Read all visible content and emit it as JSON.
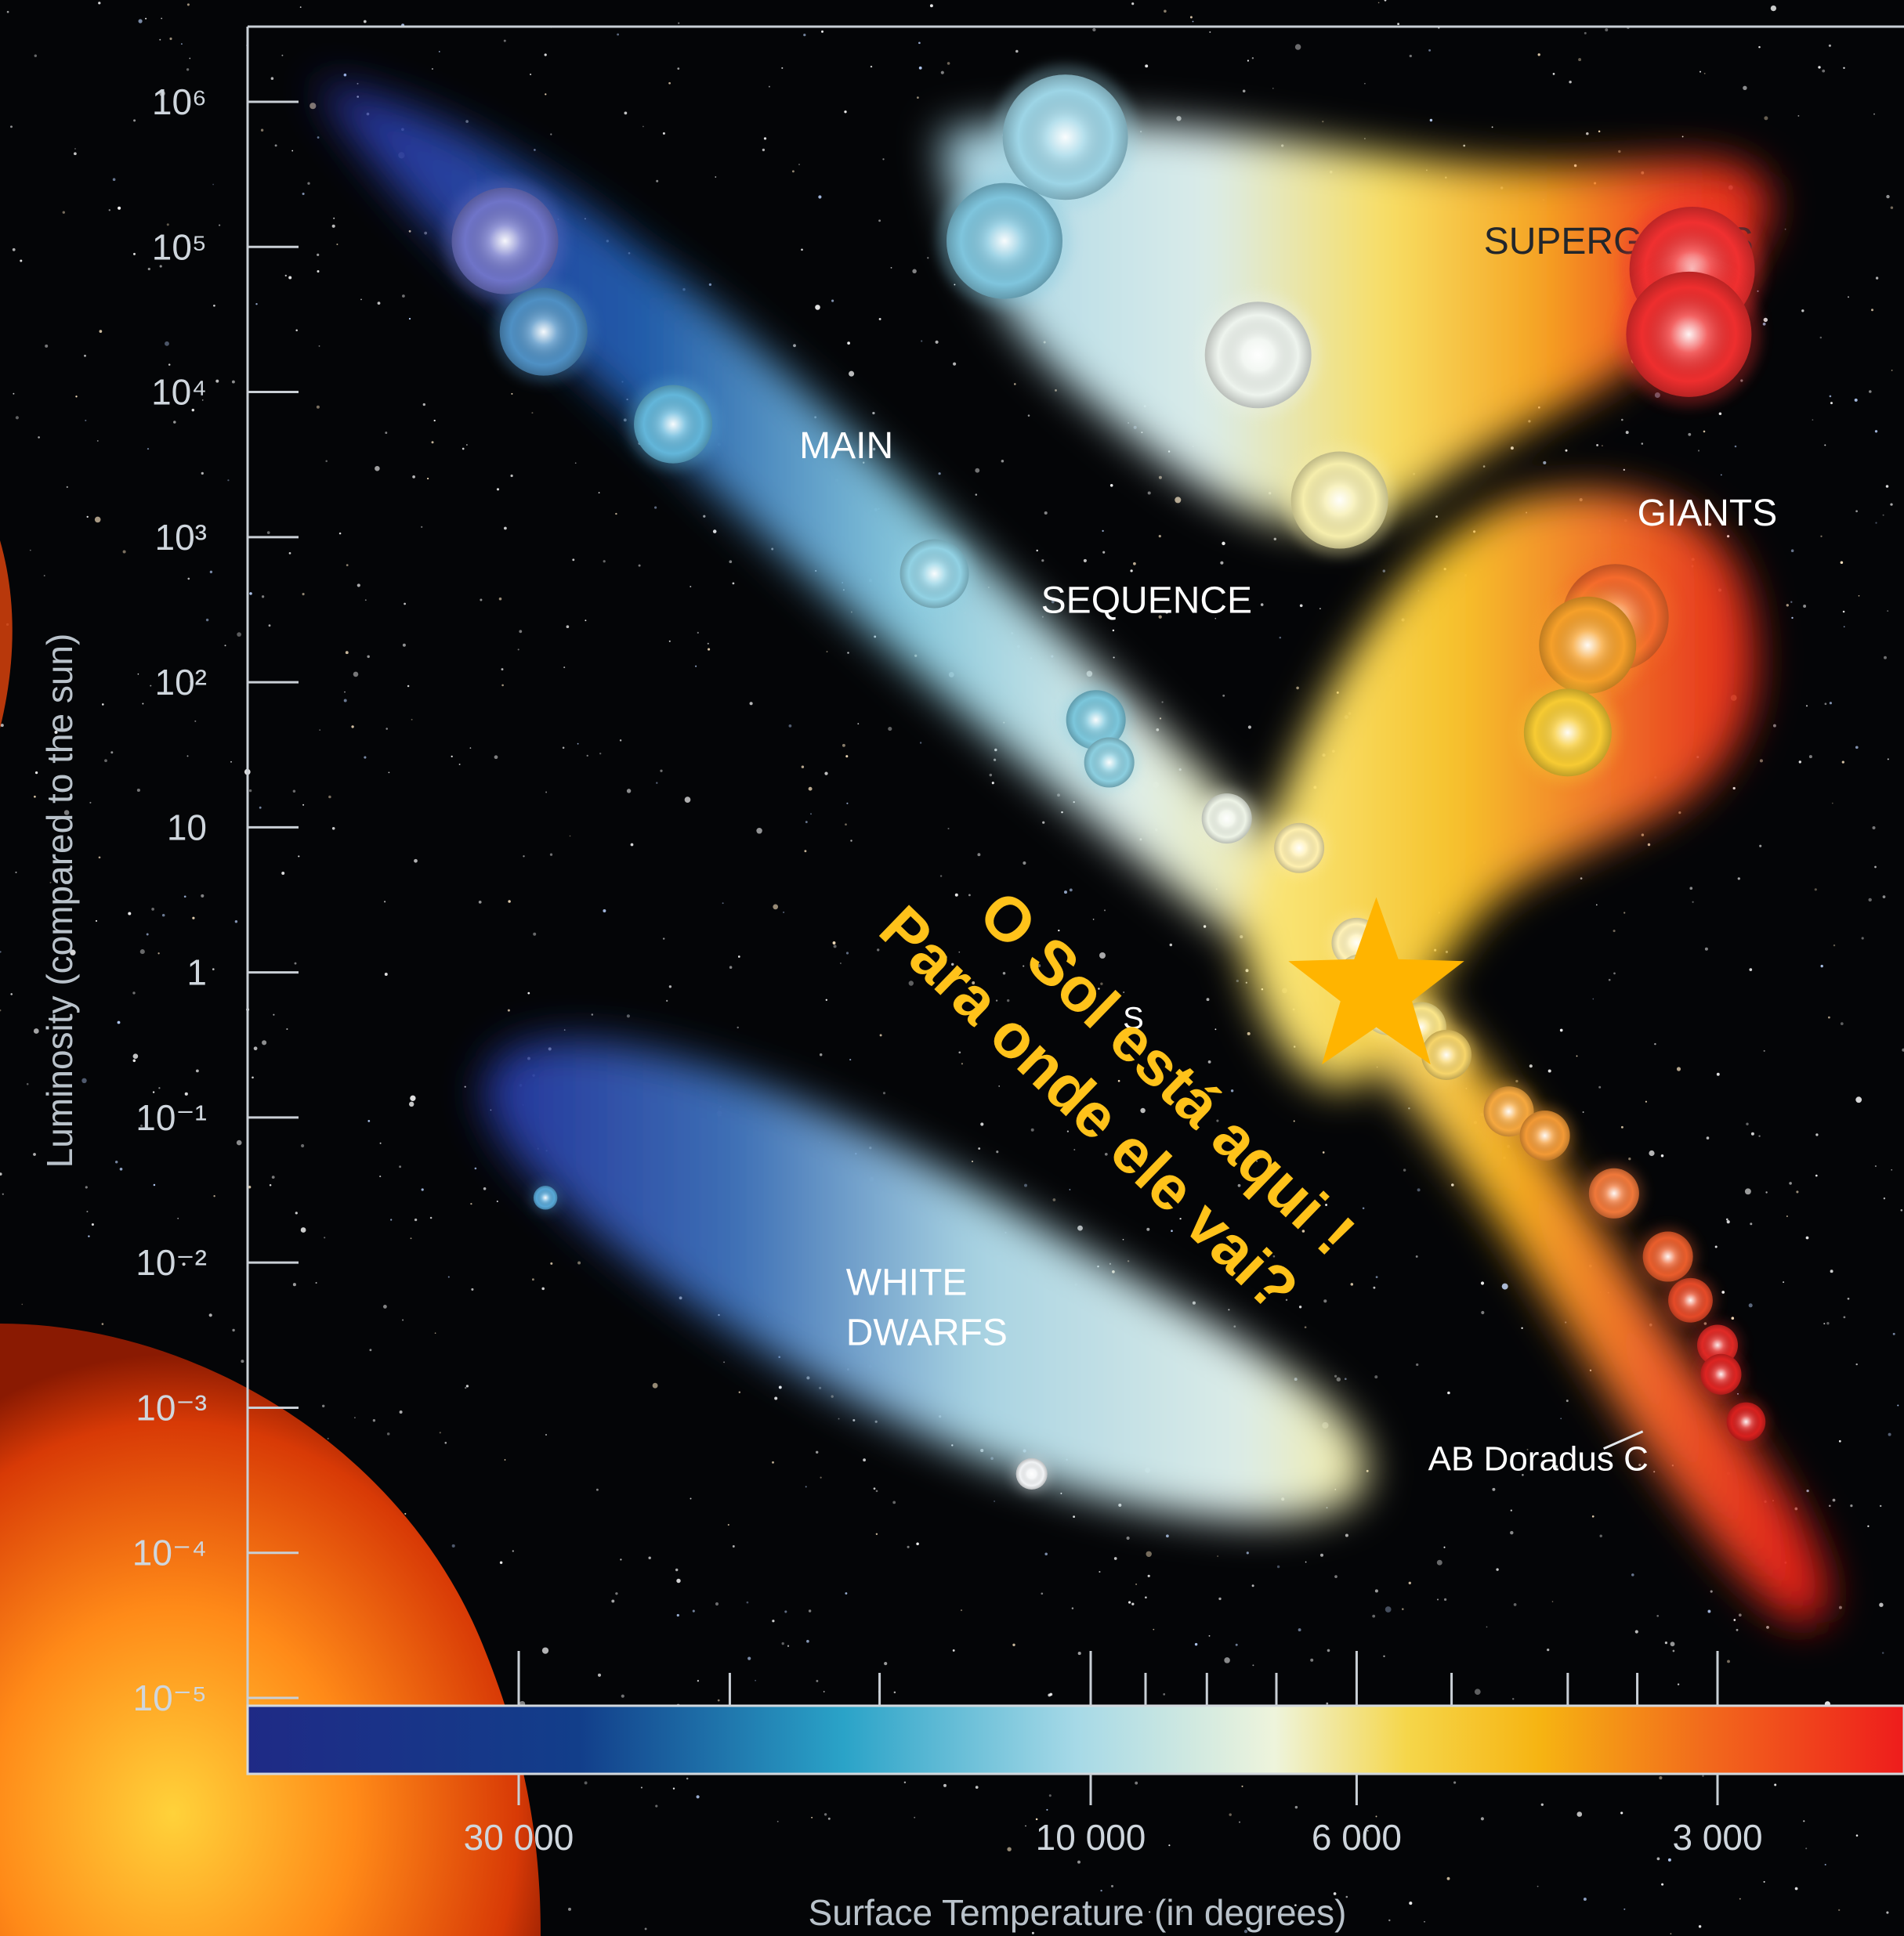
{
  "chart_data": {
    "type": "scatter",
    "title": "",
    "xlabel": "Surface Temperature (in degrees)",
    "ylabel": "Luminosity (compared to the sun)",
    "x_scale": "log-reversed",
    "x_range": [
      45000,
      2400
    ],
    "y_scale": "log",
    "y_range": [
      1e-05,
      1000000
    ],
    "x_tick_labels": [
      {
        "value": 30000,
        "label": "30 000"
      },
      {
        "value": 10000,
        "label": "10 000"
      },
      {
        "value": 6000,
        "label": "6 000"
      },
      {
        "value": 3000,
        "label": "3 000"
      }
    ],
    "x_minor_ticks": [
      20000,
      15000,
      9000,
      8000,
      7000,
      5000,
      4000,
      3500
    ],
    "y_tick_labels": [
      {
        "value": 1000000,
        "label": "10⁶"
      },
      {
        "value": 100000,
        "label": "10⁵"
      },
      {
        "value": 10000,
        "label": "10⁴"
      },
      {
        "value": 1000,
        "label": "10³"
      },
      {
        "value": 100,
        "label": "10²"
      },
      {
        "value": 10,
        "label": "10"
      },
      {
        "value": 1,
        "label": "1"
      },
      {
        "value": 0.1,
        "label": "10⁻¹"
      },
      {
        "value": 0.01,
        "label": "10⁻²"
      },
      {
        "value": 0.001,
        "label": "10⁻³"
      },
      {
        "value": 0.0001,
        "label": "10⁻⁴"
      },
      {
        "value": 1e-05,
        "label": "10⁻⁵"
      }
    ],
    "regions": [
      {
        "label_lines": [
          "SUPERGIANTS"
        ],
        "x": 4700,
        "y": 90000,
        "dark": true
      },
      {
        "label_lines": [
          "MAIN"
        ],
        "x": 17500,
        "y": 3500,
        "dark": false
      },
      {
        "label_lines": [
          "SEQUENCE"
        ],
        "x": 11000,
        "y": 300,
        "dark": false
      },
      {
        "label_lines": [
          "GIANTS"
        ],
        "x": 3500,
        "y": 1200,
        "dark": false
      },
      {
        "label_lines": [
          "WHITE",
          "DWARFS"
        ],
        "x": 16000,
        "y": 0.006,
        "dark": false
      }
    ],
    "stars": [
      {
        "x": 30800,
        "y": 110000,
        "size": 5,
        "color": "#6f74c8"
      },
      {
        "x": 28600,
        "y": 26000,
        "size": 4,
        "color": "#4f90c4"
      },
      {
        "x": 22300,
        "y": 6000,
        "size": 3.5,
        "color": "#63b6da"
      },
      {
        "x": 13500,
        "y": 560,
        "size": 3,
        "color": "#92d2e4"
      },
      {
        "x": 9900,
        "y": 55,
        "size": 2.5,
        "color": "#7cc7dc"
      },
      {
        "x": 9650,
        "y": 28,
        "size": 2,
        "color": "#8ccfe0"
      },
      {
        "x": 7700,
        "y": 11.5,
        "size": 2,
        "color": "#eef4e7"
      },
      {
        "x": 6700,
        "y": 7.2,
        "size": 2,
        "color": "#fff0b0"
      },
      {
        "x": 6000,
        "y": 1.6,
        "size": 2,
        "color": "#fff2b8"
      },
      {
        "x": 5950,
        "y": 0.9,
        "size": 2,
        "color": "#fff2b0"
      },
      {
        "x": 5650,
        "y": 0.55,
        "size": 2,
        "color": "#fdf0a8"
      },
      {
        "x": 5300,
        "y": 0.42,
        "size": 2,
        "color": "#fbe68a"
      },
      {
        "x": 5050,
        "y": 0.27,
        "size": 2,
        "color": "#f7d56a"
      },
      {
        "x": 4480,
        "y": 0.11,
        "size": 2,
        "color": "#f6a940"
      },
      {
        "x": 4180,
        "y": 0.075,
        "size": 2,
        "color": "#f39a36"
      },
      {
        "x": 3660,
        "y": 0.03,
        "size": 2,
        "color": "#f0783a"
      },
      {
        "x": 3300,
        "y": 0.011,
        "size": 2,
        "color": "#ea5e2c"
      },
      {
        "x": 3160,
        "y": 0.0055,
        "size": 1.7,
        "color": "#e54a28"
      },
      {
        "x": 3000,
        "y": 0.0027,
        "size": 1.5,
        "color": "#e02a26"
      },
      {
        "x": 2980,
        "y": 0.0017,
        "size": 1.5,
        "color": "#de2422"
      },
      {
        "x": 2840,
        "y": 0.0008,
        "size": 1.4,
        "color": "#d8201e"
      },
      {
        "x": 11200,
        "y": 0.00035,
        "size": 1,
        "color": "#f2f4f6"
      },
      {
        "x": 28500,
        "y": 0.028,
        "size": 0.6,
        "color": "#58a8d8"
      },
      {
        "x": 10500,
        "y": 570000,
        "size": 6,
        "color": "#9dd5e6"
      },
      {
        "x": 11800,
        "y": 110000,
        "size": 5.5,
        "color": "#7fc5dd"
      },
      {
        "x": 7250,
        "y": 18000,
        "size": 5,
        "color": "#eef4ee"
      },
      {
        "x": 6200,
        "y": 1800,
        "size": 4.5,
        "color": "#f6eeac"
      },
      {
        "x": 3150,
        "y": 70000,
        "size": 6,
        "color": "#f03030"
      },
      {
        "x": 3170,
        "y": 25000,
        "size": 6,
        "color": "#ee2e2e"
      },
      {
        "x": 3650,
        "y": 280,
        "size": 5,
        "color": "#f56a2c"
      },
      {
        "x": 3850,
        "y": 180,
        "size": 4.5,
        "color": "#f6a02a"
      },
      {
        "x": 4000,
        "y": 45,
        "size": 4,
        "color": "#f7cb33"
      }
    ],
    "annotations": [
      {
        "text": "AB Doradus C",
        "x": 3700,
        "y": 0.00045
      },
      {
        "text": "S",
        "x": 6650,
        "y": 0.5
      }
    ],
    "sun_marker": {
      "x": 5778,
      "y": 1,
      "color": "#ffb400"
    }
  },
  "overlay_text": {
    "line1": "O Sol está aqui !",
    "line2": "Para onde ele vai?"
  }
}
